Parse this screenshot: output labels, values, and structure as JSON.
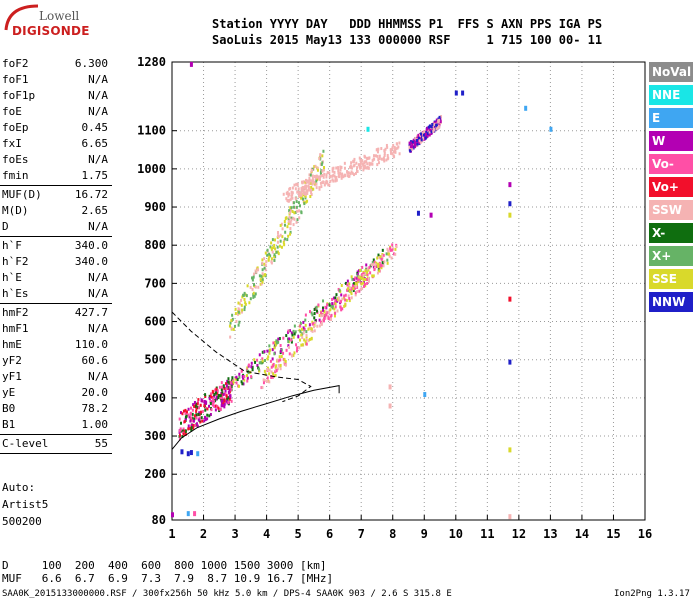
{
  "logo": {
    "line1": "Lowell",
    "line2": "DIGISONDE"
  },
  "header": {
    "line1": "Station YYYY DAY   DDD HHMMSS P1  FFS S AXN PPS IGA PS",
    "line2": "SaoLuis 2015 May13 133 000000 RSF     1 715 100 00- 11"
  },
  "params": [
    {
      "name": "foF2",
      "value": "6.300"
    },
    {
      "name": "foF1",
      "value": "N/A"
    },
    {
      "name": "foF1p",
      "value": "N/A"
    },
    {
      "name": "foE",
      "value": "N/A"
    },
    {
      "name": "foEp",
      "value": "0.45"
    },
    {
      "name": "fxI",
      "value": "6.65"
    },
    {
      "name": "foEs",
      "value": "N/A"
    },
    {
      "name": "fmin",
      "value": "1.75"
    },
    {
      "sep": true
    },
    {
      "name": "MUF(D)",
      "value": "16.72"
    },
    {
      "name": "M(D)",
      "value": "2.65"
    },
    {
      "name": "D",
      "value": "N/A"
    },
    {
      "sep": true
    },
    {
      "name": "h`F",
      "value": "340.0"
    },
    {
      "name": "h`F2",
      "value": "340.0"
    },
    {
      "name": "h`E",
      "value": "N/A"
    },
    {
      "name": "h`Es",
      "value": "N/A"
    },
    {
      "sep": true
    },
    {
      "name": "hmF2",
      "value": "427.7"
    },
    {
      "name": "hmF1",
      "value": "N/A"
    },
    {
      "name": "hmE",
      "value": "110.0"
    },
    {
      "name": "yF2",
      "value": "60.6"
    },
    {
      "name": "yF1",
      "value": "N/A"
    },
    {
      "name": "yE",
      "value": "20.0"
    },
    {
      "name": "B0",
      "value": "78.2"
    },
    {
      "name": "B1",
      "value": "1.00"
    },
    {
      "sep": true
    },
    {
      "name": "C-level",
      "value": "55"
    },
    {
      "sep": true
    }
  ],
  "auto": {
    "line1": "Auto:",
    "line2": "Artist5",
    "line3": "500200"
  },
  "legend": [
    {
      "label": "NoVal",
      "color": "#8c8c8c"
    },
    {
      "label": "NNE",
      "color": "#19e6e6"
    },
    {
      "label": "E",
      "color": "#3fa6f2"
    },
    {
      "label": "W",
      "color": "#b300b3"
    },
    {
      "label": "Vo-",
      "color": "#ff4fa6"
    },
    {
      "label": "Vo+",
      "color": "#f20f2b"
    },
    {
      "label": "SSW",
      "color": "#f5b3b3"
    },
    {
      "label": "X-",
      "color": "#0f6e0f"
    },
    {
      "label": "X+",
      "color": "#66b366"
    },
    {
      "label": "SSE",
      "color": "#d9d92b"
    },
    {
      "label": "NNW",
      "color": "#1f1fc8"
    }
  ],
  "bottom": {
    "d_line": "D     100  200  400  600  800 1000 1500 3000 [km]",
    "muf_line": "MUF   6.6  6.7  6.9  7.3  7.9  8.7 10.9 16.7 [MHz]",
    "footer_left": "SAA0K_2015133000000.RSF / 300fx256h 50 kHz 5.0 km / DPS-4 SAA0K 903 / 2.6 S 315.8 E",
    "footer_right": "Ion2Png 1.3.17"
  },
  "chart_data": {
    "type": "scatter",
    "xlim": [
      1,
      16
    ],
    "ylim": [
      80,
      1280
    ],
    "xticks": [
      1,
      2,
      3,
      4,
      5,
      6,
      7,
      8,
      9,
      10,
      11,
      12,
      13,
      14,
      15,
      16
    ],
    "yticks": [
      80,
      200,
      300,
      400,
      500,
      600,
      700,
      800,
      900,
      1000,
      1100,
      1280
    ],
    "grid": true,
    "legend_placement": "right",
    "series": [
      {
        "type": "traces",
        "segments": [
          {
            "x0": 1.2,
            "x1": 2.9,
            "y0": 330,
            "y1": 430,
            "spread": 70,
            "colors": [
              "#f20f2b",
              "#ff4fa6",
              "#b300b3",
              "#0f6e0f"
            ]
          },
          {
            "x0": 2.8,
            "x1": 7.8,
            "y0": 430,
            "y1": 780,
            "spread": 45,
            "colors": [
              "#b300b3",
              "#ff4fa6",
              "#0f6e0f",
              "#66b366",
              "#d9d92b"
            ]
          },
          {
            "x0": 3.8,
            "x1": 8.1,
            "y0": 445,
            "y1": 800,
            "spread": 40,
            "colors": [
              "#f5b3b3",
              "#ff4fa6",
              "#d9d92b"
            ]
          },
          {
            "x0": 2.8,
            "x1": 5.8,
            "y0": 580,
            "y1": 1030,
            "spread": 70,
            "colors": [
              "#d9d92b",
              "#f5b3b3",
              "#66b366"
            ]
          },
          {
            "x0": 4.5,
            "x1": 8.2,
            "y0": 930,
            "y1": 1060,
            "spread": 40,
            "colors": [
              "#f5b3b3"
            ]
          },
          {
            "x0": 8.5,
            "x1": 9.5,
            "y0": 1060,
            "y1": 1130,
            "spread": 25,
            "colors": [
              "#1f1fc8",
              "#b300b3",
              "#f5b3b3"
            ]
          }
        ]
      },
      {
        "type": "line",
        "style": "solid",
        "x": [
          1.0,
          1.3,
          1.8,
          2.5,
          3.2,
          4.0,
          4.8,
          5.5,
          6.3,
          6.3
        ],
        "y": [
          265,
          295,
          322,
          345,
          365,
          385,
          405,
          420,
          432,
          412
        ]
      },
      {
        "type": "line",
        "style": "dashed",
        "x": [
          1.0,
          1.6,
          2.4,
          3.3,
          4.3,
          5.0,
          5.4,
          5.0,
          4.5
        ],
        "y": [
          625,
          575,
          520,
          470,
          455,
          448,
          430,
          405,
          390
        ]
      }
    ],
    "markers": [
      {
        "x": 11.7,
        "y": 960,
        "color": "#b300b3"
      },
      {
        "x": 11.7,
        "y": 910,
        "color": "#1f1fc8"
      },
      {
        "x": 11.7,
        "y": 880,
        "color": "#d9d92b"
      },
      {
        "x": 11.7,
        "y": 660,
        "color": "#f20f2b"
      },
      {
        "x": 11.7,
        "y": 495,
        "color": "#1f1fc8"
      },
      {
        "x": 10.0,
        "y": 1200,
        "color": "#1f1fc8"
      },
      {
        "x": 10.2,
        "y": 1200,
        "color": "#1f1fc8"
      },
      {
        "x": 12.2,
        "y": 1160,
        "color": "#3fa6f2"
      },
      {
        "x": 13.0,
        "y": 1105,
        "color": "#3fa6f2"
      },
      {
        "x": 8.8,
        "y": 885,
        "color": "#1f1fc8"
      },
      {
        "x": 9.2,
        "y": 880,
        "color": "#b300b3"
      },
      {
        "x": 7.2,
        "y": 1105,
        "color": "#19e6e6"
      },
      {
        "x": 11.7,
        "y": 265,
        "color": "#d9d92b"
      },
      {
        "x": 11.7,
        "y": 90,
        "color": "#f5b3b3"
      },
      {
        "x": 7.9,
        "y": 430,
        "color": "#f5b3b3"
      },
      {
        "x": 7.9,
        "y": 380,
        "color": "#f5b3b3"
      },
      {
        "x": 9.0,
        "y": 410,
        "color": "#3fa6f2"
      },
      {
        "x": 1.6,
        "y": 1275,
        "color": "#b300b3"
      },
      {
        "x": 1.0,
        "y": 95,
        "color": "#b300b3"
      },
      {
        "x": 1.5,
        "y": 98,
        "color": "#3fa6f2"
      },
      {
        "x": 1.7,
        "y": 98,
        "color": "#ff4fa6"
      },
      {
        "x": 1.5,
        "y": 255,
        "color": "#1f1fc8"
      },
      {
        "x": 1.6,
        "y": 258,
        "color": "#1f1fc8"
      },
      {
        "x": 1.8,
        "y": 255,
        "color": "#3fa6f2"
      },
      {
        "x": 1.3,
        "y": 260,
        "color": "#1f1fc8"
      }
    ]
  }
}
